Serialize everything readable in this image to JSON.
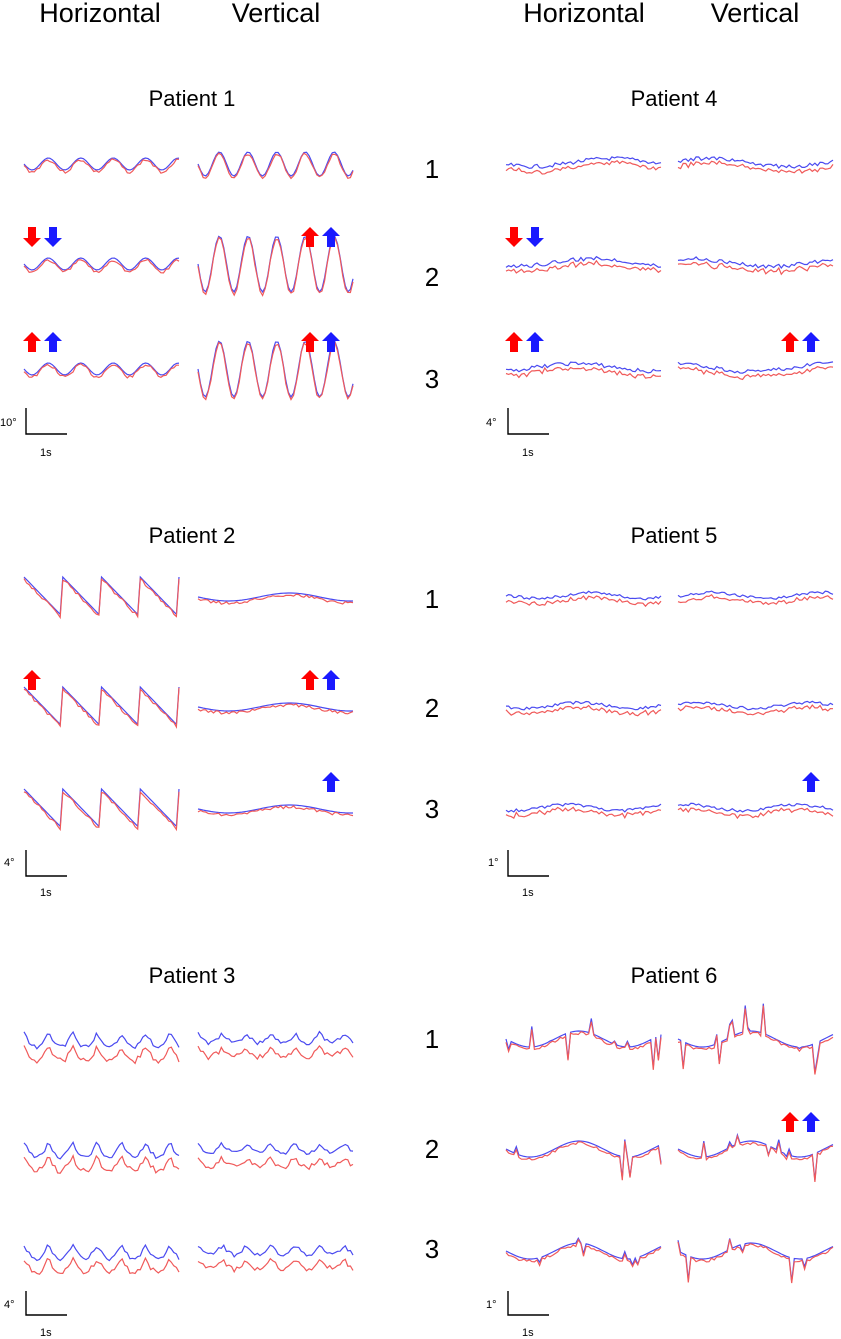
{
  "columns": {
    "left": [
      "Horizontal",
      "Vertical"
    ],
    "right": [
      "Horizontal",
      "Vertical"
    ]
  },
  "trial_numbers": [
    "1",
    "2",
    "3"
  ],
  "colors": {
    "red": "#f05a5a",
    "blue": "#4a4af0",
    "arrow_red": "#ff0000",
    "arrow_blue": "#1a1aff"
  },
  "patients": [
    {
      "title": "Patient 1",
      "scale": {
        "deg": "10°",
        "time": "1s"
      },
      "arrows": [
        {
          "row": 2,
          "trace": "h",
          "dirs": [
            "down-red",
            "down-blue"
          ]
        },
        {
          "row": 2,
          "trace": "v",
          "dirs": [
            "up-red",
            "up-blue"
          ]
        },
        {
          "row": 3,
          "trace": "h",
          "dirs": [
            "up-red",
            "up-blue"
          ]
        },
        {
          "row": 3,
          "trace": "v",
          "dirs": [
            "up-red",
            "up-blue"
          ]
        }
      ]
    },
    {
      "title": "Patient 4",
      "scale": {
        "deg": "4°",
        "time": "1s"
      },
      "arrows": [
        {
          "row": 2,
          "trace": "h",
          "dirs": [
            "down-red",
            "down-blue"
          ]
        },
        {
          "row": 3,
          "trace": "h",
          "dirs": [
            "up-red",
            "up-blue"
          ]
        },
        {
          "row": 3,
          "trace": "v",
          "dirs": [
            "up-red",
            "up-blue"
          ]
        }
      ]
    },
    {
      "title": "Patient 2",
      "scale": {
        "deg": "4°",
        "time": "1s"
      },
      "arrows": [
        {
          "row": 2,
          "trace": "h",
          "dirs": [
            "up-red"
          ]
        },
        {
          "row": 2,
          "trace": "v",
          "dirs": [
            "up-red",
            "up-blue"
          ]
        },
        {
          "row": 3,
          "trace": "v",
          "dirs": [
            "up-blue"
          ]
        }
      ]
    },
    {
      "title": "Patient 5",
      "scale": {
        "deg": "1°",
        "time": "1s"
      },
      "arrows": [
        {
          "row": 3,
          "trace": "v",
          "dirs": [
            "up-blue"
          ]
        }
      ]
    },
    {
      "title": "Patient 3",
      "scale": {
        "deg": "4°",
        "time": "1s"
      },
      "arrows": []
    },
    {
      "title": "Patient 6",
      "scale": {
        "deg": "1°",
        "time": "1s"
      },
      "arrows": [
        {
          "row": 2,
          "trace": "v",
          "dirs": [
            "up-red",
            "up-blue"
          ]
        }
      ]
    }
  ]
}
